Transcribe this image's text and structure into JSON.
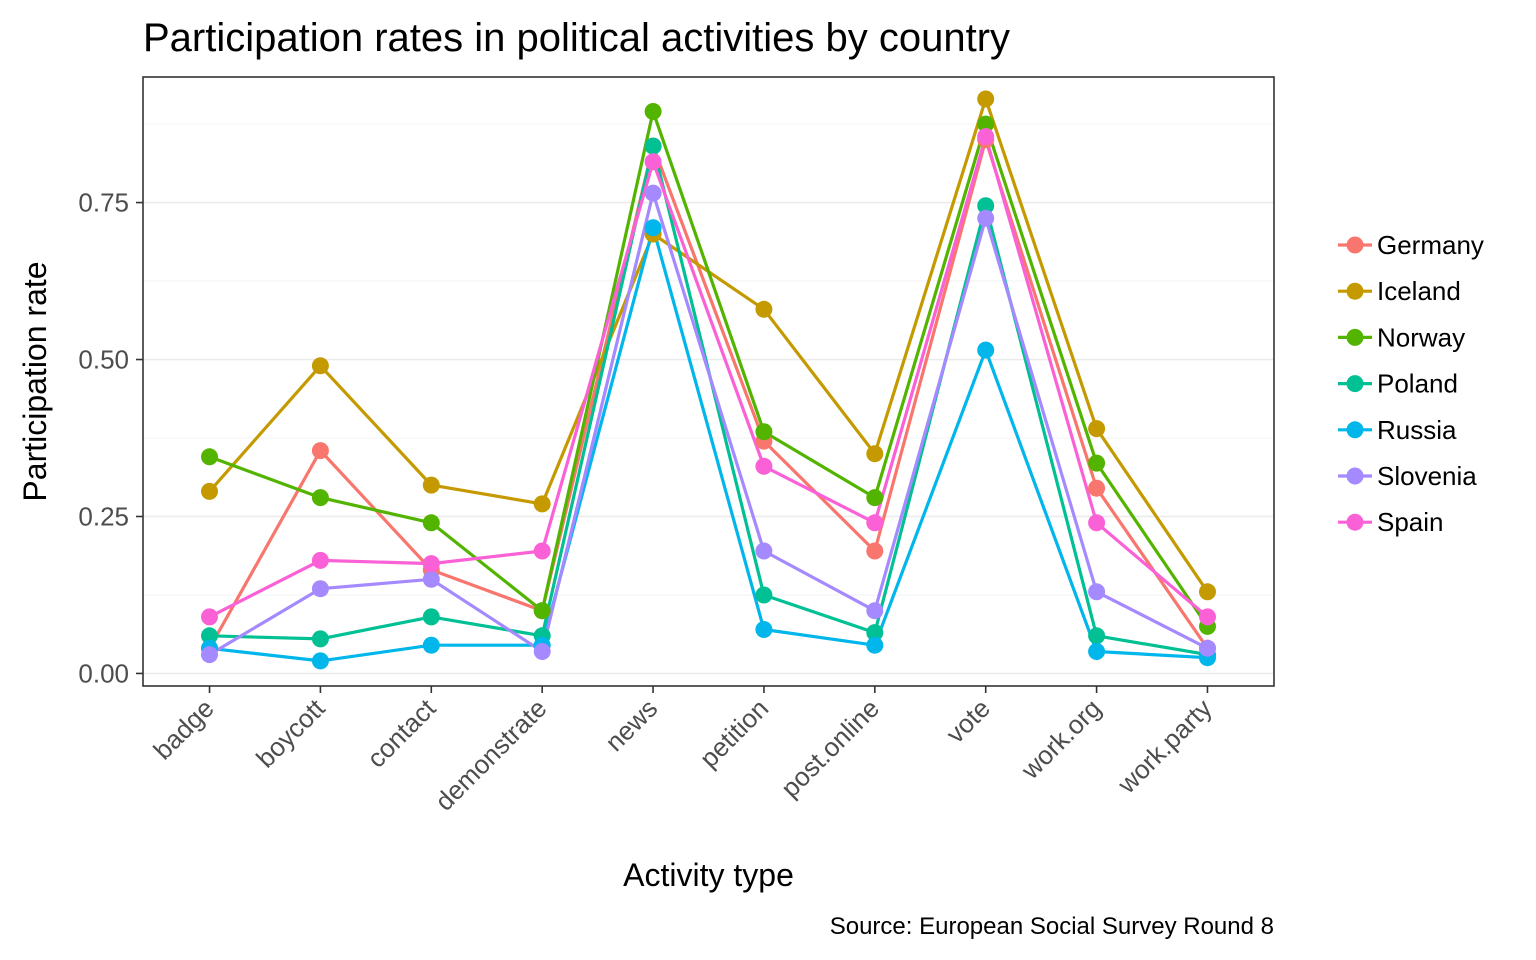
{
  "chart_data": {
    "type": "line",
    "title": "Participation rates in political activities by country",
    "xlabel": "Activity type",
    "ylabel": "Participation rate",
    "caption": "Source: European Social Survey Round 8",
    "ylim": [
      -0.02,
      0.95
    ],
    "yticks": [
      0.0,
      0.25,
      0.5,
      0.75
    ],
    "ytick_labels": [
      "0.00",
      "0.25",
      "0.50",
      "0.75"
    ],
    "grid": true,
    "legend_position": "right",
    "categories": [
      "badge",
      "boycott",
      "contact",
      "demonstrate",
      "news",
      "petition",
      "post.online",
      "vote",
      "work.org",
      "work.party"
    ],
    "series": [
      {
        "name": "Germany",
        "color": "#F8766D",
        "values": [
          0.04,
          0.355,
          0.165,
          0.1,
          0.84,
          0.37,
          0.195,
          0.85,
          0.295,
          0.04
        ]
      },
      {
        "name": "Iceland",
        "color": "#C49A00",
        "values": [
          0.29,
          0.49,
          0.3,
          0.27,
          0.7,
          0.58,
          0.35,
          0.915,
          0.39,
          0.13
        ]
      },
      {
        "name": "Norway",
        "color": "#53B400",
        "values": [
          0.345,
          0.28,
          0.24,
          0.1,
          0.895,
          0.385,
          0.28,
          0.875,
          0.335,
          0.075
        ]
      },
      {
        "name": "Poland",
        "color": "#00C094",
        "values": [
          0.06,
          0.055,
          0.09,
          0.06,
          0.84,
          0.125,
          0.065,
          0.745,
          0.06,
          0.03
        ]
      },
      {
        "name": "Russia",
        "color": "#00B6EB",
        "values": [
          0.04,
          0.02,
          0.045,
          0.045,
          0.71,
          0.07,
          0.045,
          0.515,
          0.035,
          0.025
        ]
      },
      {
        "name": "Slovenia",
        "color": "#A58AFF",
        "values": [
          0.03,
          0.135,
          0.15,
          0.035,
          0.765,
          0.195,
          0.1,
          0.725,
          0.13,
          0.04
        ]
      },
      {
        "name": "Spain",
        "color": "#FB61D7",
        "values": [
          0.09,
          0.18,
          0.175,
          0.195,
          0.815,
          0.33,
          0.24,
          0.855,
          0.24,
          0.09
        ]
      }
    ]
  }
}
